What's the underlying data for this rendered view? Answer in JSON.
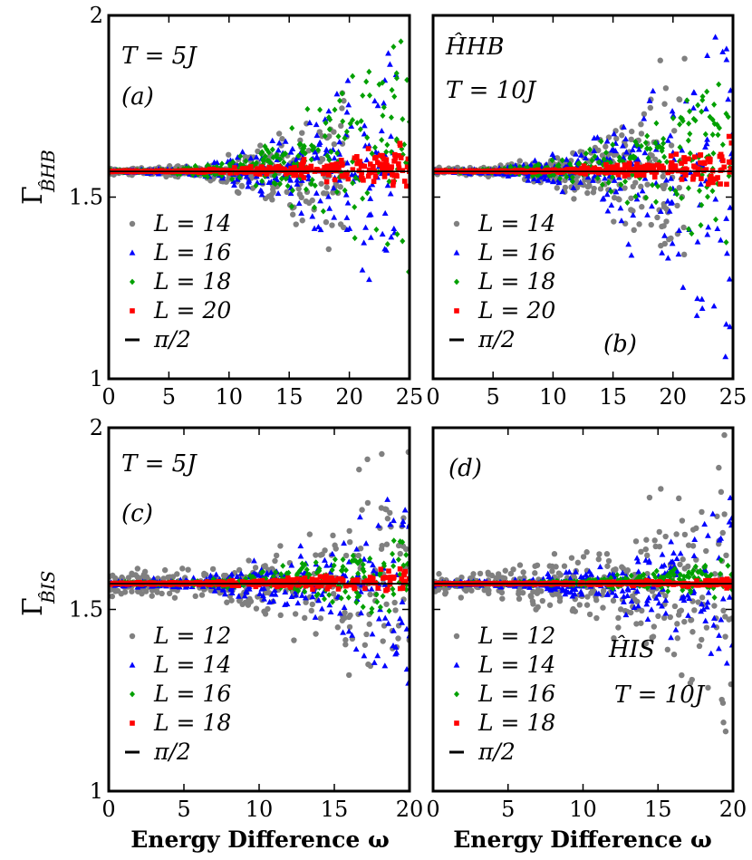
{
  "figure": {
    "ylabel_top": "Γ",
    "ylabel_top_sub": "B̂HB",
    "ylabel_bottom": "Γ",
    "ylabel_bottom_sub": "B̂IS",
    "xlabel_left": "Energy Difference ω",
    "xlabel_right": "Energy Difference ω"
  },
  "chart_data": [
    {
      "type": "scatter",
      "panel": "(a)",
      "annotations": [
        "T = 5J",
        "(a)"
      ],
      "xlim": [
        0,
        25
      ],
      "ylim": [
        1,
        2
      ],
      "xticks": [
        "0",
        "5",
        "10",
        "15",
        "20",
        "25"
      ],
      "yticks": [
        "1",
        "1.5",
        "2"
      ],
      "reference_line": {
        "label": "π/2",
        "value": 1.5708,
        "color": "#000000"
      },
      "series": [
        {
          "name": "L = 14",
          "marker": "circle",
          "color": "#808080",
          "n": 320,
          "spread": [
            0.008,
            0.42
          ],
          "x_max": 20
        },
        {
          "name": "L = 16",
          "marker": "triangle",
          "color": "#0000ff",
          "n": 300,
          "spread": [
            0.004,
            0.38
          ],
          "x_max": 24
        },
        {
          "name": "L = 18",
          "marker": "diamond",
          "color": "#00a000",
          "n": 300,
          "spread": [
            0.002,
            0.32
          ],
          "x_max": 25
        },
        {
          "name": "L = 20",
          "marker": "square",
          "color": "#ff0000",
          "n": 320,
          "spread": [
            0.001,
            0.06
          ],
          "x_max": 25
        }
      ],
      "legend": [
        "L = 14",
        "L = 16",
        "L = 18",
        "L = 20",
        "π/2"
      ]
    },
    {
      "type": "scatter",
      "panel": "(b)",
      "annotations": [
        "ĤHB",
        "T = 10J",
        "(b)"
      ],
      "xlim": [
        0,
        25
      ],
      "ylim": [
        1,
        2
      ],
      "xticks": [
        "0",
        "5",
        "10",
        "15",
        "20",
        "25"
      ],
      "yticks": [],
      "reference_line": {
        "label": "π/2",
        "value": 1.5708,
        "color": "#000000"
      },
      "series": [
        {
          "name": "L = 14",
          "marker": "circle",
          "color": "#808080",
          "n": 320,
          "spread": [
            0.008,
            0.5
          ],
          "x_max": 21
        },
        {
          "name": "L = 16",
          "marker": "triangle",
          "color": "#0000ff",
          "n": 300,
          "spread": [
            0.004,
            0.55
          ],
          "x_max": 25
        },
        {
          "name": "L = 18",
          "marker": "diamond",
          "color": "#00a000",
          "n": 300,
          "spread": [
            0.002,
            0.28
          ],
          "x_max": 25
        },
        {
          "name": "L = 20",
          "marker": "square",
          "color": "#ff0000",
          "n": 320,
          "spread": [
            0.001,
            0.05
          ],
          "x_max": 25
        }
      ],
      "legend": [
        "L = 14",
        "L = 16",
        "L = 18",
        "L = 20",
        "π/2"
      ]
    },
    {
      "type": "scatter",
      "panel": "(c)",
      "annotations": [
        "T = 5J",
        "(c)"
      ],
      "xlim": [
        0,
        20
      ],
      "ylim": [
        1,
        2
      ],
      "xticks": [
        "0",
        "5",
        "10",
        "15",
        "20"
      ],
      "yticks": [
        "1",
        "1.5",
        "2"
      ],
      "reference_line": {
        "label": "π/2",
        "value": 1.5708,
        "color": "#000000"
      },
      "series": [
        {
          "name": "L = 12",
          "marker": "circle",
          "color": "#808080",
          "n": 320,
          "spread": [
            0.03,
            0.36
          ],
          "x_max": 20
        },
        {
          "name": "L = 14",
          "marker": "triangle",
          "color": "#0000ff",
          "n": 300,
          "spread": [
            0.008,
            0.28
          ],
          "x_max": 20
        },
        {
          "name": "L = 16",
          "marker": "diamond",
          "color": "#00a000",
          "n": 300,
          "spread": [
            0.003,
            0.12
          ],
          "x_max": 20
        },
        {
          "name": "L = 18",
          "marker": "square",
          "color": "#ff0000",
          "n": 320,
          "spread": [
            0.002,
            0.035
          ],
          "x_max": 20
        }
      ],
      "legend": [
        "L = 12",
        "L = 14",
        "L = 16",
        "L = 18",
        "π/2"
      ]
    },
    {
      "type": "scatter",
      "panel": "(d)",
      "annotations": [
        "(d)",
        "ĤIS",
        "T = 10J"
      ],
      "xlim": [
        0,
        20
      ],
      "ylim": [
        1,
        2
      ],
      "xticks": [
        "0",
        "5",
        "10",
        "15",
        "20"
      ],
      "yticks": [],
      "reference_line": {
        "label": "π/2",
        "value": 1.5708,
        "color": "#000000"
      },
      "series": [
        {
          "name": "L = 12",
          "marker": "circle",
          "color": "#808080",
          "n": 320,
          "spread": [
            0.03,
            0.4
          ],
          "x_max": 20
        },
        {
          "name": "L = 14",
          "marker": "triangle",
          "color": "#0000ff",
          "n": 300,
          "spread": [
            0.006,
            0.22
          ],
          "x_max": 20
        },
        {
          "name": "L = 16",
          "marker": "diamond",
          "color": "#00a000",
          "n": 300,
          "spread": [
            0.002,
            0.05
          ],
          "x_max": 20
        },
        {
          "name": "L = 18",
          "marker": "square",
          "color": "#ff0000",
          "n": 320,
          "spread": [
            0.001,
            0.01
          ],
          "x_max": 20
        }
      ],
      "legend": [
        "L = 12",
        "L = 14",
        "L = 16",
        "L = 18",
        "π/2"
      ]
    }
  ]
}
